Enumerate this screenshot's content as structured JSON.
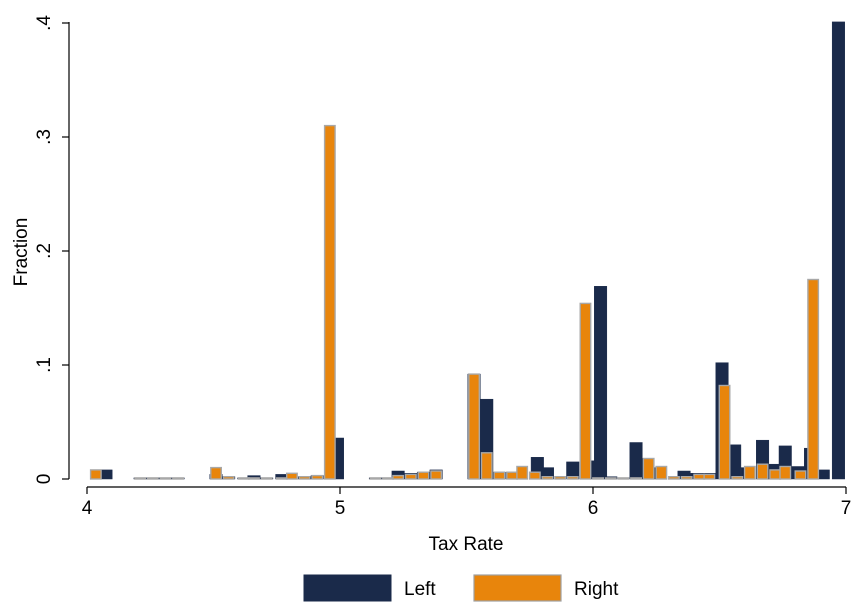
{
  "chart_data": {
    "type": "bar",
    "xlabel": "Tax Rate",
    "ylabel": "Fraction",
    "xlim": [
      4,
      7
    ],
    "ylim": [
      0,
      0.4
    ],
    "x_ticks": [
      {
        "value": 4,
        "label": "4"
      },
      {
        "value": 5,
        "label": "5"
      },
      {
        "value": 6,
        "label": "6"
      },
      {
        "value": 7,
        "label": "7"
      }
    ],
    "y_ticks": [
      {
        "value": 0,
        "label": "0"
      },
      {
        "value": 0.1,
        "label": ".1"
      },
      {
        "value": 0.2,
        "label": ".2"
      },
      {
        "value": 0.3,
        "label": ".3"
      },
      {
        "value": 0.4,
        "label": ".4"
      }
    ],
    "grid": false,
    "legend_position": "bottom",
    "bin_width": 0.0494,
    "series": [
      {
        "name": "Left",
        "color": "#1a2a4a",
        "x": [
          4.075,
          4.21,
          4.26,
          4.31,
          4.36,
          4.51,
          4.56,
          4.62,
          4.66,
          4.71,
          4.77,
          4.86,
          4.91,
          4.99,
          5.14,
          5.19,
          5.23,
          5.28,
          5.33,
          5.38,
          5.53,
          5.58,
          5.62,
          5.68,
          5.78,
          5.82,
          5.92,
          5.98,
          6.03,
          6.07,
          6.17,
          6.21,
          6.26,
          6.36,
          6.41,
          6.46,
          6.51,
          6.56,
          6.61,
          6.67,
          6.71,
          6.76,
          6.81,
          6.86,
          6.91,
          6.97
        ],
        "values": [
          0.008,
          0.001,
          0.001,
          0.001,
          0.001,
          0.004,
          0.002,
          0.001,
          0.003,
          0.001,
          0.004,
          0.002,
          0.003,
          0.036,
          0.001,
          0.001,
          0.007,
          0.005,
          0.006,
          0.008,
          0.092,
          0.07,
          0.006,
          0.006,
          0.019,
          0.01,
          0.015,
          0.016,
          0.169,
          0.002,
          0.032,
          0.018,
          0.01,
          0.007,
          0.005,
          0.005,
          0.102,
          0.03,
          0.01,
          0.034,
          0.013,
          0.029,
          0.011,
          0.027,
          0.008,
          0.401
        ]
      },
      {
        "name": "Right",
        "color": "#e8850c",
        "x": [
          4.035,
          4.21,
          4.26,
          4.31,
          4.36,
          4.51,
          4.56,
          4.62,
          4.66,
          4.71,
          4.77,
          4.81,
          4.86,
          4.91,
          4.96,
          5.14,
          5.19,
          5.23,
          5.28,
          5.33,
          5.38,
          5.53,
          5.58,
          5.63,
          5.68,
          5.72,
          5.77,
          5.82,
          5.87,
          5.92,
          5.97,
          6.02,
          6.07,
          6.12,
          6.17,
          6.22,
          6.27,
          6.32,
          6.37,
          6.42,
          6.46,
          6.52,
          6.57,
          6.62,
          6.67,
          6.72,
          6.76,
          6.82,
          6.87,
          6.92,
          6.97
        ],
        "values": [
          0.008,
          0.001,
          0.001,
          0.001,
          0.001,
          0.01,
          0.002,
          0.001,
          0.001,
          0.001,
          0.001,
          0.005,
          0.002,
          0.003,
          0.31,
          0.001,
          0.001,
          0.003,
          0.004,
          0.006,
          0.007,
          0.092,
          0.023,
          0.006,
          0.006,
          0.011,
          0.006,
          0.002,
          0.002,
          0.002,
          0.154,
          0.001,
          0.001,
          0.001,
          0.001,
          0.018,
          0.011,
          0.002,
          0.002,
          0.004,
          0.004,
          0.082,
          0.002,
          0.011,
          0.013,
          0.008,
          0.011,
          0.007,
          0.175,
          0.0,
          0.0
        ]
      }
    ]
  }
}
